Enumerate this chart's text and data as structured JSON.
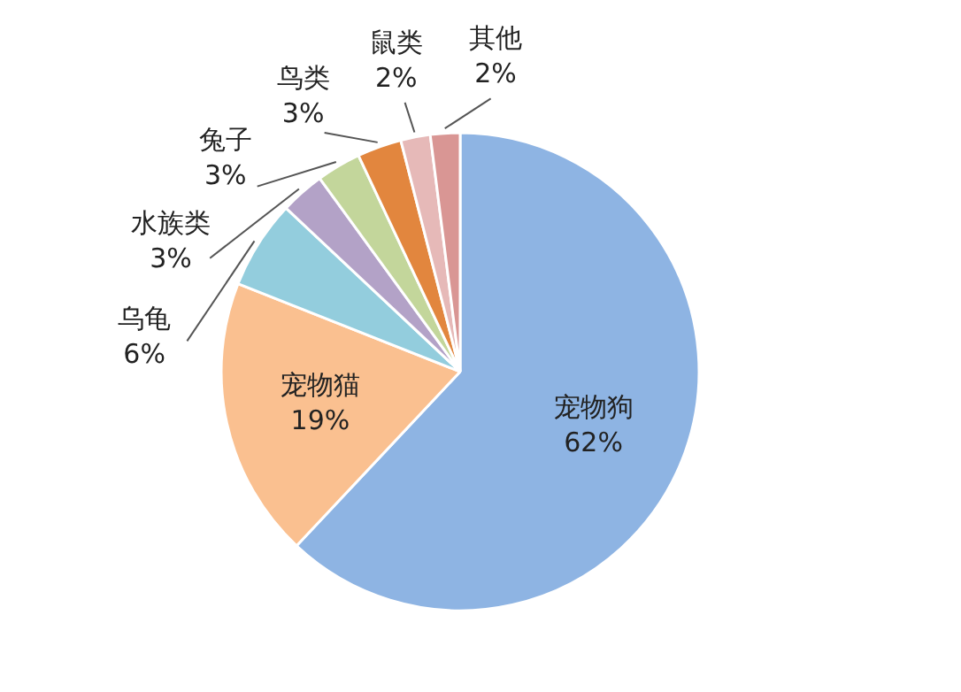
{
  "chart_data": {
    "type": "pie",
    "categories": [
      "宠物狗",
      "宠物猫",
      "乌龟",
      "水族类",
      "兔子",
      "鸟类",
      "鼠类",
      "其他"
    ],
    "values": [
      62,
      19,
      6,
      3,
      3,
      3,
      2,
      2
    ],
    "value_labels": [
      "62%",
      "19%",
      "6%",
      "3%",
      "3%",
      "3%",
      "2%",
      "2%"
    ],
    "colors": [
      "#8eb4e3",
      "#fac090",
      "#93cddd",
      "#b3a2c7",
      "#c3d69b",
      "#e2863e",
      "#e6b9b8",
      "#d99694"
    ]
  }
}
